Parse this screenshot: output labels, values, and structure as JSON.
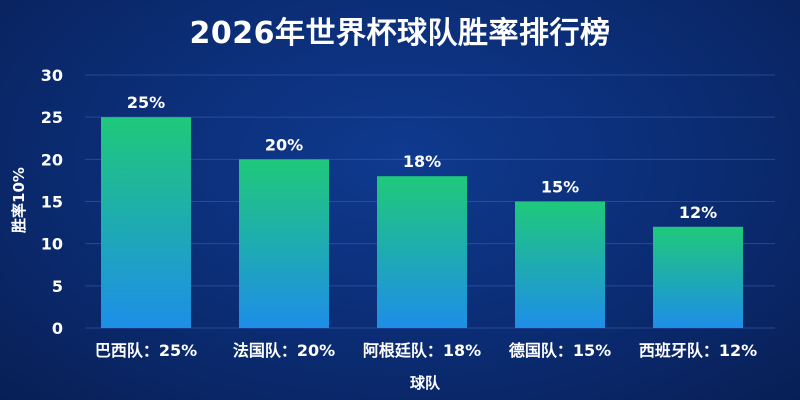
{
  "title": "2026年世界杯球队胜率排行榜",
  "chart_data": {
    "type": "bar",
    "title": "2026年世界杯球队胜率排行榜",
    "categories": [
      "巴西队：25%",
      "法国队：20%",
      "阿根廷队：18%",
      "德国队：15%",
      "西班牙队：12%"
    ],
    "values": [
      25,
      20,
      18,
      15,
      12
    ],
    "data_labels": [
      "25%",
      "20%",
      "18%",
      "15%",
      "12%"
    ],
    "xlabel": "球队",
    "ylabel": "胜率10%",
    "ylim": [
      0,
      30
    ],
    "yticks": [
      0,
      5,
      10,
      15,
      20,
      25,
      30
    ],
    "grid": true,
    "colors": {
      "bar_top": "#1fc97a",
      "bar_bottom": "#1e8ee8",
      "grid": "#3b63b8"
    }
  }
}
